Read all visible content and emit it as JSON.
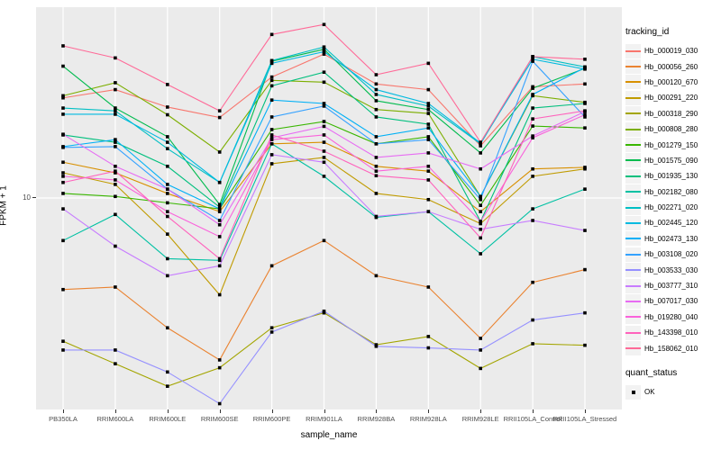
{
  "y_axis": {
    "title": "FPKM + 1",
    "ticks": [
      {
        "label": "10",
        "value": 10
      }
    ]
  },
  "x_axis": {
    "title": "sample_name"
  },
  "legend": {
    "tracking_title": "tracking_id",
    "quant_title": "quant_status",
    "quant_items": [
      {
        "label": "OK",
        "marker": "black-square"
      }
    ]
  },
  "style": {
    "panel_bg": "#EBEBEB",
    "grid_color": "#FFFFFF",
    "marker_color": "#000000",
    "tick_text_color": "#4D4D4D"
  },
  "chart_data": {
    "type": "line",
    "y_scale": "log10",
    "xlabel": "sample_name",
    "ylabel": "FPKM + 1",
    "grid": "major-only",
    "legend_position": "right",
    "marker": "square",
    "categories": [
      "PB350LA",
      "RRIM600LA",
      "RRIM600LE",
      "RRIM600SE",
      "RRIM600PE",
      "RRIM901LA",
      "RRIM928BA",
      "RRIM928LA",
      "RRIM928LE",
      "RRII105LA_Control",
      "RRII105LA_Stressed"
    ],
    "ylim_approx": [
      0.6,
      115
    ],
    "series": [
      {
        "name": "Hb_000019_030",
        "color": "#F8766D",
        "values": [
          36,
          40,
          32,
          28,
          47,
          63,
          43,
          40,
          19.5,
          41.5,
          43
        ]
      },
      {
        "name": "Hb_000056_260",
        "color": "#EA8331",
        "values": [
          3.1,
          3.2,
          1.9,
          1.26,
          4.2,
          5.8,
          3.7,
          3.2,
          1.66,
          3.4,
          4.0
        ]
      },
      {
        "name": "Hb_000120_670",
        "color": "#D89000",
        "values": [
          15.8,
          13.8,
          10.6,
          8.4,
          20,
          20.4,
          15,
          14.1,
          8.4,
          14.5,
          14.8
        ]
      },
      {
        "name": "Hb_000291_220",
        "color": "#C09B00",
        "values": [
          13.8,
          11.9,
          6.3,
          2.9,
          15.5,
          16.8,
          10.6,
          9.8,
          7.2,
          13.2,
          14.5
        ]
      },
      {
        "name": "Hb_000318_290",
        "color": "#A3A500",
        "values": [
          1.6,
          1.2,
          0.9,
          1.14,
          1.9,
          2.3,
          1.53,
          1.7,
          1.13,
          1.55,
          1.52
        ]
      },
      {
        "name": "Hb_000808_280",
        "color": "#7CAE00",
        "values": [
          37,
          43.7,
          29,
          18,
          45,
          44,
          31,
          29.5,
          10.2,
          37,
          34
        ]
      },
      {
        "name": "Hb_001279_150",
        "color": "#39B600",
        "values": [
          10.6,
          10.2,
          9.4,
          8.7,
          24,
          26.6,
          20,
          21.9,
          9.1,
          25.1,
          24.5
        ]
      },
      {
        "name": "Hb_001575_090",
        "color": "#00BB4E",
        "values": [
          54,
          31.6,
          21.9,
          9.2,
          57.5,
          67,
          34.7,
          31,
          17.8,
          40.7,
          52.5
        ]
      },
      {
        "name": "Hb_001935_130",
        "color": "#00BF7D",
        "values": [
          22.4,
          20.4,
          15,
          8.9,
          42,
          50,
          28.2,
          25.7,
          7.4,
          31.6,
          33.5
        ]
      },
      {
        "name": "Hb_002182_080",
        "color": "#00C1A3",
        "values": [
          5.8,
          8.1,
          4.6,
          4.5,
          20,
          13.2,
          7.8,
          8.4,
          4.9,
          8.7,
          11.2
        ]
      },
      {
        "name": "Hb_002271_020",
        "color": "#00BFC4",
        "values": [
          31.6,
          30.5,
          18.8,
          12.2,
          58,
          69,
          37.6,
          32.4,
          20,
          61,
          53.5
        ]
      },
      {
        "name": "Hb_002445_120",
        "color": "#00BAE0",
        "values": [
          29.2,
          29.2,
          20.4,
          12.2,
          56,
          65,
          40,
          33.5,
          20.2,
          59,
          52
        ]
      },
      {
        "name": "Hb_002473_130",
        "color": "#00B0F6",
        "values": [
          19.3,
          21.1,
          11.9,
          8.7,
          35,
          33.5,
          21.9,
          24.5,
          10.2,
          37.6,
          53
        ]
      },
      {
        "name": "Hb_003108_020",
        "color": "#35A2FF",
        "values": [
          19.1,
          19.3,
          11.2,
          7.5,
          28.2,
          32.4,
          20,
          21.1,
          9.8,
          57.5,
          28.2
        ]
      },
      {
        "name": "Hb_003533_030",
        "color": "#9590FF",
        "values": [
          1.43,
          1.43,
          1.08,
          0.72,
          1.8,
          2.35,
          1.5,
          1.47,
          1.43,
          2.1,
          2.3
        ]
      },
      {
        "name": "Hb_003777_310",
        "color": "#C77CFF",
        "values": [
          8.7,
          5.4,
          3.7,
          4.2,
          17.4,
          15.8,
          7.9,
          8.4,
          6.7,
          7.5,
          6.6
        ]
      },
      {
        "name": "Hb_007017_030",
        "color": "#E76BF3",
        "values": [
          22.6,
          15,
          11.2,
          7.1,
          21.6,
          25,
          16.8,
          17.8,
          14.5,
          22.1,
          30.2
        ]
      },
      {
        "name": "Hb_019280_040",
        "color": "#FA62DB",
        "values": [
          13.2,
          12.6,
          8.4,
          6.1,
          21.1,
          22.4,
          14.1,
          15,
          7.4,
          21.6,
          29
        ]
      },
      {
        "name": "Hb_143398_010",
        "color": "#FF62BC",
        "values": [
          12.2,
          14.1,
          7.9,
          4.6,
          22.4,
          18.2,
          13.3,
          12.6,
          6.0,
          27.5,
          30.5
        ]
      },
      {
        "name": "Hb_158062_010",
        "color": "#FF6A98",
        "values": [
          70,
          60,
          42.7,
          30.5,
          81,
          92,
          48.4,
          56,
          20.4,
          61,
          59
        ]
      }
    ]
  }
}
